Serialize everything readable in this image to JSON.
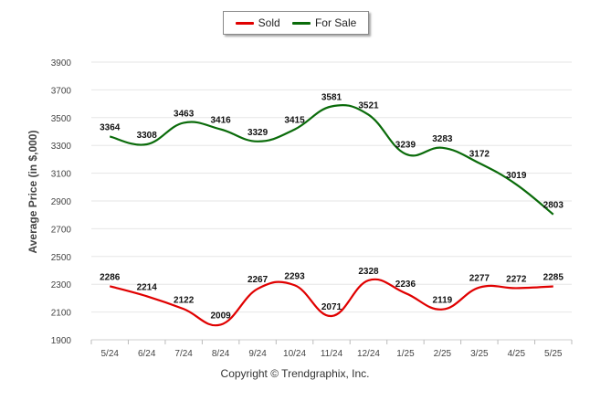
{
  "legend": {
    "sold_label": "Sold",
    "for_sale_label": "For Sale"
  },
  "ylabel": "Average Price (in $,000)",
  "footer": "Copyright © Trendgraphix, Inc.",
  "chart_data": {
    "type": "line",
    "title": "",
    "xlabel": "",
    "ylabel": "Average Price (in $,000)",
    "categories": [
      "5/24",
      "6/24",
      "7/24",
      "8/24",
      "9/24",
      "10/24",
      "11/24",
      "12/24",
      "1/25",
      "2/25",
      "3/25",
      "4/25",
      "5/25"
    ],
    "ylim": [
      1900,
      3900
    ],
    "yticks": [
      1900,
      2100,
      2300,
      2500,
      2700,
      2900,
      3100,
      3300,
      3500,
      3700,
      3900
    ],
    "grid": true,
    "legend_position": "top-center",
    "series": [
      {
        "name": "Sold",
        "color": "#e00000",
        "values": [
          2286,
          2214,
          2122,
          2009,
          2267,
          2293,
          2071,
          2328,
          2236,
          2119,
          2277,
          2272,
          2285
        ]
      },
      {
        "name": "For Sale",
        "color": "#0a6b0a",
        "values": [
          3364,
          3308,
          3463,
          3416,
          3329,
          3415,
          3581,
          3521,
          3239,
          3283,
          3172,
          3019,
          2803
        ]
      }
    ]
  }
}
